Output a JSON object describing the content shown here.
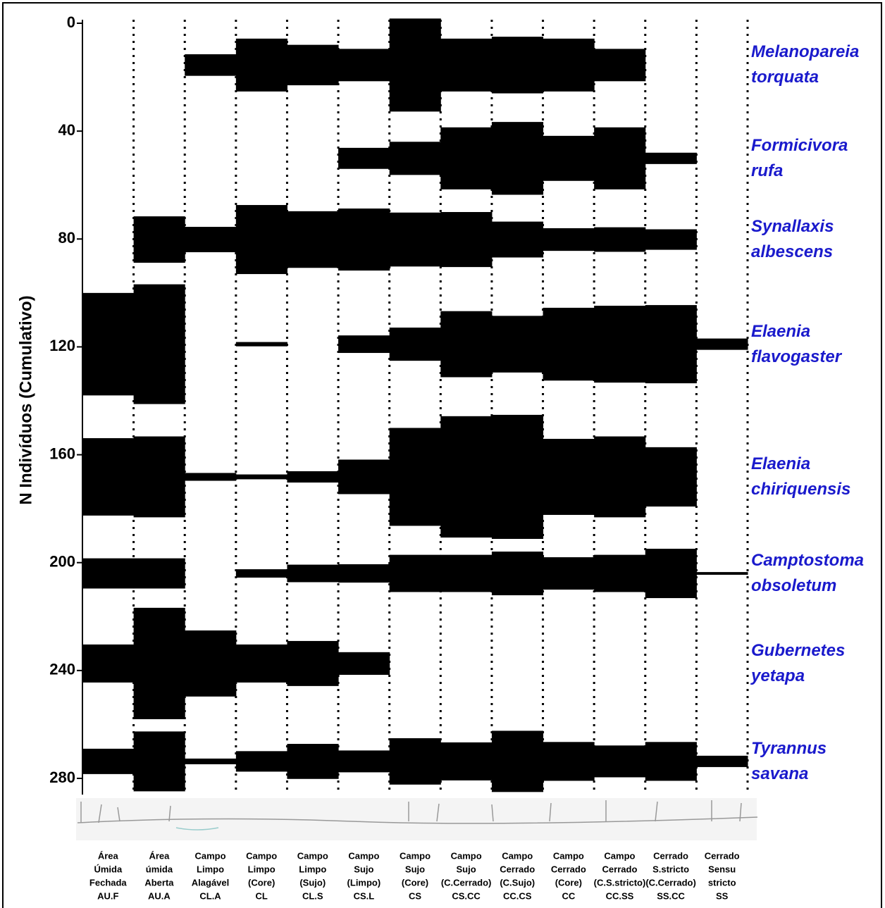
{
  "chart_data": {
    "type": "kite",
    "y_label": "N Indivíduos (Cumulativo)",
    "ylim": [
      0,
      280
    ],
    "yticks": [
      0,
      40,
      80,
      120,
      160,
      200,
      240,
      280
    ],
    "y_inverted": true,
    "categories": [
      [
        "Área",
        "Úmida",
        "Fechada",
        "AU.F"
      ],
      [
        "Área",
        "úmida",
        "Aberta",
        "AU.A"
      ],
      [
        "Campo",
        "Limpo",
        "Alagável",
        "CL.A"
      ],
      [
        "Campo",
        "Limpo",
        "(Core)",
        "CL"
      ],
      [
        "Campo",
        "Limpo",
        "(Sujo)",
        "CL.S"
      ],
      [
        "Campo",
        "Sujo",
        "(Limpo)",
        "CS.L"
      ],
      [
        "Campo",
        "Sujo",
        "(Core)",
        "CS"
      ],
      [
        "Campo",
        "Sujo",
        "(C.Cerrado)",
        "CS.CC"
      ],
      [
        "Campo",
        "Cerrado",
        "(C.Sujo)",
        "CC.CS"
      ],
      [
        "Campo",
        "Cerrado",
        "(Core)",
        "CC"
      ],
      [
        "Campo",
        "Cerrado",
        "(C.S.stricto)",
        "CC.SS"
      ],
      [
        "Cerrado",
        "S.stricto",
        "(C.Cerrado)",
        "SS.CC"
      ],
      [
        "Cerrado",
        "Sensu",
        "stricto",
        "SS"
      ]
    ],
    "bar_color": "#000000",
    "label_color": "#1a1acc",
    "series": [
      {
        "name": "Melanopareia torquata",
        "center": 15.5,
        "values": [
          null,
          null,
          8,
          19.6,
          15,
          12,
          34.5,
          19.6,
          21,
          19.6,
          12,
          null,
          null
        ]
      },
      {
        "name": "Formicivora rufa",
        "center": 50.1,
        "values": [
          null,
          null,
          null,
          null,
          null,
          7.8,
          12.3,
          23,
          27,
          16.7,
          23,
          4.2,
          null
        ]
      },
      {
        "name": "Synallaxis albescens",
        "center": 80.2,
        "values": [
          null,
          17.2,
          9.4,
          25.6,
          21,
          23,
          20,
          20.4,
          13.3,
          8.4,
          9.1,
          7.6,
          null
        ]
      },
      {
        "name": "Elaenia flavogaster",
        "center": 119,
        "values": [
          38,
          44.4,
          null,
          1.6,
          null,
          6.5,
          12.3,
          24.5,
          21,
          27,
          28.5,
          29,
          4.2
        ]
      },
      {
        "name": "Elaenia chiriquensis",
        "center": 168.2,
        "values": [
          28.7,
          30,
          2.9,
          1.8,
          4.2,
          12.8,
          36.3,
          45,
          46,
          28.2,
          30,
          22,
          null
        ]
      },
      {
        "name": "Camptostoma obsoletum",
        "center": 204,
        "values": [
          11.2,
          11.2,
          null,
          3.1,
          6.5,
          6.8,
          13.8,
          13.8,
          16.2,
          12,
          13.8,
          18.3,
          1
        ]
      },
      {
        "name": "Gubernetes yetapa",
        "center": 237.4,
        "values": [
          14.1,
          41.3,
          24.5,
          14.1,
          16.7,
          8.4,
          null,
          null,
          null,
          null,
          null,
          null,
          null
        ]
      },
      {
        "name": "Tyrannus savana",
        "center": 273.7,
        "values": [
          9.4,
          22.2,
          2.1,
          7.6,
          13,
          8.1,
          17.2,
          14.1,
          22.7,
          14.4,
          11.8,
          14.4,
          4.2
        ]
      }
    ]
  }
}
